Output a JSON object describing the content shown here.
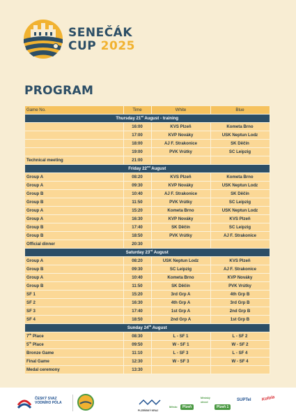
{
  "logo": {
    "line1": "SENEČÁK",
    "line2": "CUP",
    "year": "2025"
  },
  "page_title": "PROGRAM",
  "table": {
    "headers": {
      "game": "Game No.",
      "time": "Time",
      "white": "White",
      "blue": "Blue"
    },
    "sections": [
      {
        "day": "Thursday 21",
        "day_sup": "st",
        "day_rest": " August - training",
        "rows": [
          {
            "game": "",
            "time": "16:00",
            "white": "KVS Plzeň",
            "blue": "Kometa Brno"
          },
          {
            "game": "",
            "time": "17:00",
            "white": "KVP Nováky",
            "blue": "USK Neptun Lodz"
          },
          {
            "game": "",
            "time": "18:00",
            "white": "AJ F. Strakonice",
            "blue": "SK Děčín"
          },
          {
            "game": "",
            "time": "19:00",
            "white": "PVK Vrútky",
            "blue": "SC Leipzig"
          },
          {
            "game": "Technical meeting",
            "time": "21:00",
            "white": "",
            "blue": ""
          }
        ]
      },
      {
        "day": "Friday 22",
        "day_sup": "nd",
        "day_rest": " August",
        "rows": [
          {
            "game": "Group A",
            "time": "08:20",
            "white": "KVS Plzeň",
            "blue": "Kometa Brno"
          },
          {
            "game": "Group A",
            "time": "09:30",
            "white": "KVP Nováky",
            "blue": "USK Neptun Lodz"
          },
          {
            "game": "Group B",
            "time": "10:40",
            "white": "AJ F. Strakonice",
            "blue": "SK Děčín"
          },
          {
            "game": "Group B",
            "time": "11:50",
            "white": "PVK Vrútky",
            "blue": "SC Leipzig"
          },
          {
            "game": "Group A",
            "time": "15:20",
            "white": "Kometa Brno",
            "blue": "USK Neptun Lodz"
          },
          {
            "game": "Group A",
            "time": "16:30",
            "white": "KVP Nováky",
            "blue": "KVS Plzeň"
          },
          {
            "game": "Group B",
            "time": "17:40",
            "white": "SK Děčín",
            "blue": "SC Leipzig"
          },
          {
            "game": "Group B",
            "time": "18:50",
            "white": "PVK Vrútky",
            "blue": "AJ F. Strakonice"
          },
          {
            "game": "Official dinner",
            "time": "20:30",
            "white": "",
            "blue": ""
          }
        ]
      },
      {
        "day": "Saturday 23",
        "day_sup": "rd",
        "day_rest": " August",
        "rows": [
          {
            "game": "Group A",
            "time": "08:20",
            "white": "USK Neptun Lodz",
            "blue": "KVS Plzeň"
          },
          {
            "game": "Group B",
            "time": "09:30",
            "white": "SC Leipzig",
            "blue": "AJ F. Strakonice"
          },
          {
            "game": "Group A",
            "time": "10:40",
            "white": "Kometa Brno",
            "blue": "KVP Nováky"
          },
          {
            "game": "Group B",
            "time": "11:50",
            "white": "SK Děčín",
            "blue": "PVK Vrútky"
          },
          {
            "game": "SF 1",
            "time": "15:20",
            "white": "3rd Grp A",
            "blue": "4th Grp B"
          },
          {
            "game": "SF 2",
            "time": "16:30",
            "white": "4th Grp A",
            "blue": "3rd Grp B"
          },
          {
            "game": "SF 3",
            "time": "17:40",
            "white": "1st Grp A",
            "blue": "2nd Grp B"
          },
          {
            "game": "SF 4",
            "time": "18:50",
            "white": "2nd Grp A",
            "blue": "1st Grp B"
          }
        ]
      },
      {
        "day": "Sunday 24",
        "day_sup": "th",
        "day_rest": " August",
        "rows": [
          {
            "game": "7",
            "game_sup": "th",
            "game_rest": " Place",
            "time": "08:30",
            "white": "L - SF 1",
            "blue": "L - SF 2"
          },
          {
            "game": "5",
            "game_sup": "th",
            "game_rest": " Place",
            "time": "09:50",
            "white": "W - SF 1",
            "blue": "W - SF 2"
          },
          {
            "game": "Bronze Game",
            "time": "11:10",
            "white": "L - SF 3",
            "blue": "L - SF 4"
          },
          {
            "game": "Final Game",
            "time": "12:30",
            "white": "W - SF 3",
            "blue": "W - SF 4"
          },
          {
            "game": "Medal ceremony",
            "time": "13:30",
            "white": "",
            "blue": ""
          }
        ]
      }
    ]
  },
  "footer": {
    "svaz_line1": "ČESKÝ SVAZ",
    "svaz_line2": "VODNÍHO PÓLA",
    "kraj": "PLZEŇSKÝ KRAJ",
    "mesto": "Město",
    "plzen": "Plzeň",
    "plzen1": "Plzeň 1",
    "suptel": "SUPTel",
    "mestsky": "Městský obvod",
    "radost": "Kofola"
  },
  "colors": {
    "navy": "#2c4e66",
    "gold": "#f1b230",
    "header_row": "#f6c25e",
    "body_row": "#fbd896",
    "background": "#f8edd3"
  }
}
